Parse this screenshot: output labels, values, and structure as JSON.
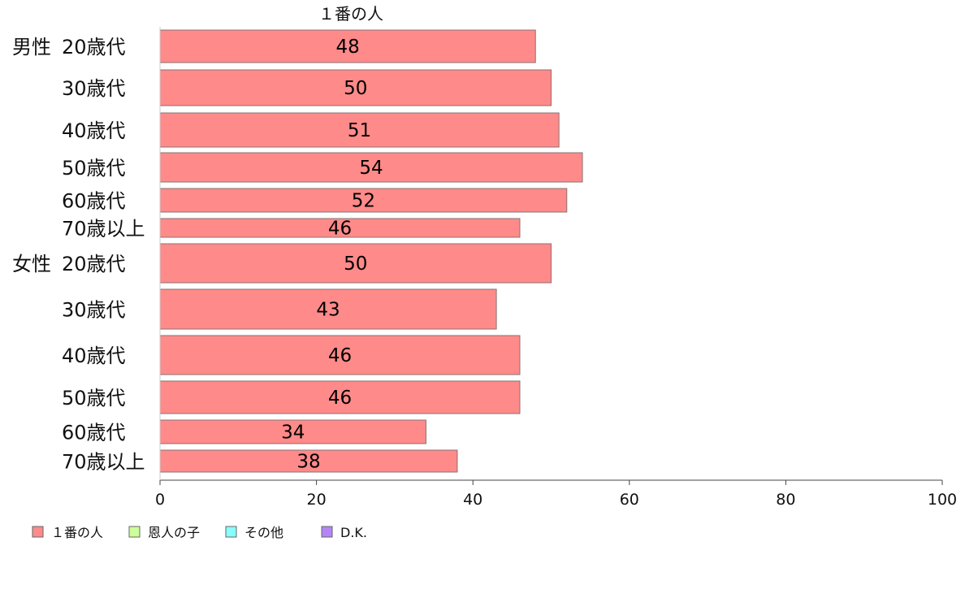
{
  "chart_data": {
    "type": "bar",
    "orientation": "horizontal",
    "title": "１番の人",
    "groups": [
      {
        "label": "男性",
        "categories": [
          "20歳代",
          "30歳代",
          "40歳代",
          "50歳代",
          "60歳代",
          "70歳以上"
        ],
        "values": [
          48,
          50,
          51,
          54,
          52,
          46
        ]
      },
      {
        "label": "女性",
        "categories": [
          "20歳代",
          "30歳代",
          "40歳代",
          "50歳代",
          "60歳代",
          "70歳以上"
        ],
        "values": [
          50,
          43,
          46,
          46,
          34,
          38
        ]
      }
    ],
    "xlim": [
      0,
      100
    ],
    "xticks": [
      "0",
      "20",
      "40",
      "60",
      "80",
      "100"
    ],
    "grid": false,
    "legend_position": "bottom-left",
    "legend": [
      {
        "label": "１番の人",
        "color": "#ff8a8a"
      },
      {
        "label": "恩人の子",
        "color": "#ccff99"
      },
      {
        "label": "その他",
        "color": "#88ffff"
      },
      {
        "label": "D.K.",
        "color": "#b585f5"
      }
    ],
    "bar_color": "#ff8a8a"
  }
}
